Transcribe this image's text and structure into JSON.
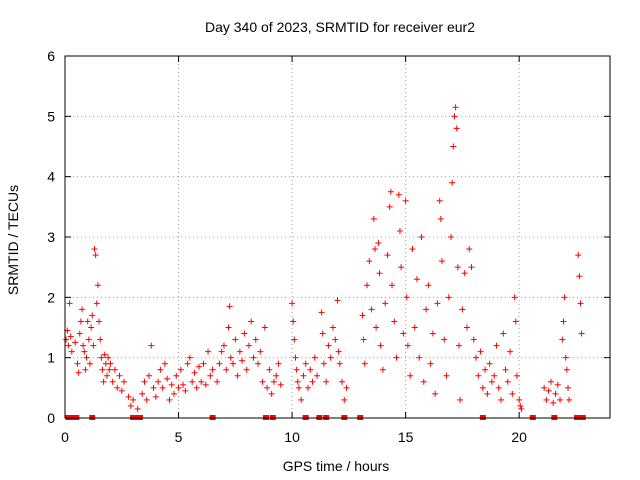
{
  "chart_data": {
    "type": "scatter",
    "title": "Day 340 of 2023, SRMTID for receiver eur2",
    "xlabel": "GPS time / hours",
    "ylabel": "SRMTID / TECUs",
    "xlim": [
      0,
      24
    ],
    "ylim": [
      0,
      6
    ],
    "xticks": [
      0,
      5,
      10,
      15,
      20
    ],
    "yticks": [
      0,
      1,
      2,
      3,
      4,
      5,
      6
    ],
    "grid": true,
    "marker": "plus",
    "color": "#ff0000",
    "legend": "none",
    "series": [
      {
        "name": "SRMTID",
        "points": [
          [
            0.05,
            1.3
          ],
          [
            0.1,
            1.45
          ],
          [
            0.15,
            1.2
          ],
          [
            0.2,
            1.9
          ],
          [
            0.25,
            1.35
          ],
          [
            0.3,
            1.1
          ],
          [
            0.45,
            1.25
          ],
          [
            0.55,
            0.9
          ],
          [
            0.6,
            0.75
          ],
          [
            0.65,
            1.4
          ],
          [
            0.7,
            1.6
          ],
          [
            0.75,
            1.8
          ],
          [
            0.8,
            1.2
          ],
          [
            0.85,
            1.1
          ],
          [
            0.9,
            0.8
          ],
          [
            0.95,
            1.0
          ],
          [
            1.0,
            1.6
          ],
          [
            1.05,
            1.3
          ],
          [
            1.1,
            0.9
          ],
          [
            1.15,
            1.5
          ],
          [
            1.2,
            1.7
          ],
          [
            1.25,
            1.2
          ],
          [
            1.3,
            2.8
          ],
          [
            1.35,
            2.7
          ],
          [
            1.4,
            1.9
          ],
          [
            1.45,
            2.2
          ],
          [
            1.5,
            1.6
          ],
          [
            1.55,
            1.3
          ],
          [
            1.6,
            1.0
          ],
          [
            1.65,
            0.8
          ],
          [
            1.7,
            0.6
          ],
          [
            1.75,
            1.05
          ],
          [
            1.8,
            0.9
          ],
          [
            1.85,
            0.7
          ],
          [
            1.9,
            1.0
          ],
          [
            1.95,
            0.8
          ],
          [
            2.0,
            0.9
          ],
          [
            2.1,
            0.6
          ],
          [
            2.2,
            0.8
          ],
          [
            2.3,
            0.5
          ],
          [
            2.4,
            0.7
          ],
          [
            2.5,
            0.45
          ],
          [
            2.6,
            0.6
          ],
          [
            2.8,
            0.35
          ],
          [
            2.9,
            0.2
          ],
          [
            3.0,
            0.3
          ],
          [
            3.2,
            0.15
          ],
          [
            3.4,
            0.4
          ],
          [
            3.5,
            0.6
          ],
          [
            3.6,
            0.3
          ],
          [
            3.7,
            0.7
          ],
          [
            3.8,
            1.2
          ],
          [
            3.9,
            0.5
          ],
          [
            4.0,
            0.35
          ],
          [
            4.1,
            0.6
          ],
          [
            4.2,
            0.8
          ],
          [
            4.3,
            0.5
          ],
          [
            4.4,
            0.9
          ],
          [
            4.5,
            0.65
          ],
          [
            4.6,
            0.3
          ],
          [
            4.7,
            0.55
          ],
          [
            4.8,
            0.4
          ],
          [
            4.9,
            0.7
          ],
          [
            5.0,
            0.5
          ],
          [
            5.1,
            0.8
          ],
          [
            5.2,
            0.55
          ],
          [
            5.3,
            0.45
          ],
          [
            5.4,
            0.9
          ],
          [
            5.5,
            1.0
          ],
          [
            5.6,
            0.6
          ],
          [
            5.7,
            0.75
          ],
          [
            5.8,
            0.5
          ],
          [
            5.9,
            0.85
          ],
          [
            6.0,
            0.6
          ],
          [
            6.1,
            0.9
          ],
          [
            6.2,
            0.55
          ],
          [
            6.3,
            1.1
          ],
          [
            6.4,
            0.7
          ],
          [
            6.5,
            0.8
          ],
          [
            6.7,
            0.6
          ],
          [
            6.8,
            0.9
          ],
          [
            6.9,
            1.1
          ],
          [
            7.0,
            1.2
          ],
          [
            7.1,
            0.8
          ],
          [
            7.2,
            1.5
          ],
          [
            7.25,
            1.85
          ],
          [
            7.3,
            1.0
          ],
          [
            7.4,
            0.9
          ],
          [
            7.5,
            1.3
          ],
          [
            7.6,
            0.7
          ],
          [
            7.7,
            1.1
          ],
          [
            7.8,
            0.95
          ],
          [
            7.9,
            1.4
          ],
          [
            8.0,
            0.8
          ],
          [
            8.1,
            1.2
          ],
          [
            8.2,
            1.6
          ],
          [
            8.3,
            1.0
          ],
          [
            8.4,
            1.3
          ],
          [
            8.5,
            0.9
          ],
          [
            8.6,
            1.1
          ],
          [
            8.7,
            0.6
          ],
          [
            8.8,
            1.5
          ],
          [
            8.9,
            0.5
          ],
          [
            9.0,
            0.8
          ],
          [
            9.1,
            0.4
          ],
          [
            9.2,
            0.6
          ],
          [
            9.3,
            0.7
          ],
          [
            9.4,
            0.9
          ],
          [
            9.5,
            0.55
          ],
          [
            10.0,
            1.9
          ],
          [
            10.05,
            1.6
          ],
          [
            10.1,
            1.3
          ],
          [
            10.15,
            1.0
          ],
          [
            10.2,
            0.8
          ],
          [
            10.25,
            0.6
          ],
          [
            10.3,
            0.5
          ],
          [
            10.4,
            0.3
          ],
          [
            10.5,
            0.7
          ],
          [
            10.6,
            0.9
          ],
          [
            10.7,
            0.5
          ],
          [
            10.8,
            0.8
          ],
          [
            10.9,
            0.6
          ],
          [
            11.0,
            1.0
          ],
          [
            11.1,
            0.7
          ],
          [
            11.3,
            1.75
          ],
          [
            11.35,
            1.4
          ],
          [
            11.4,
            0.9
          ],
          [
            11.5,
            0.6
          ],
          [
            11.6,
            1.2
          ],
          [
            11.7,
            1.0
          ],
          [
            11.8,
            1.5
          ],
          [
            11.9,
            1.3
          ],
          [
            12.0,
            1.95
          ],
          [
            12.05,
            1.1
          ],
          [
            12.1,
            0.9
          ],
          [
            12.2,
            0.6
          ],
          [
            12.3,
            0.3
          ],
          [
            12.4,
            0.5
          ],
          [
            13.1,
            1.7
          ],
          [
            13.15,
            1.3
          ],
          [
            13.2,
            0.9
          ],
          [
            13.3,
            2.2
          ],
          [
            13.4,
            2.6
          ],
          [
            13.5,
            1.8
          ],
          [
            13.6,
            3.3
          ],
          [
            13.65,
            2.8
          ],
          [
            13.7,
            1.5
          ],
          [
            13.8,
            2.9
          ],
          [
            13.85,
            2.4
          ],
          [
            13.9,
            1.2
          ],
          [
            14.0,
            0.8
          ],
          [
            14.1,
            1.9
          ],
          [
            14.2,
            2.7
          ],
          [
            14.3,
            3.5
          ],
          [
            14.35,
            3.75
          ],
          [
            14.4,
            2.2
          ],
          [
            14.5,
            1.6
          ],
          [
            14.6,
            1.0
          ],
          [
            14.7,
            3.7
          ],
          [
            14.75,
            3.1
          ],
          [
            14.8,
            2.5
          ],
          [
            14.9,
            1.4
          ],
          [
            15.0,
            3.6
          ],
          [
            15.05,
            2.0
          ],
          [
            15.1,
            1.2
          ],
          [
            15.2,
            0.7
          ],
          [
            15.3,
            2.8
          ],
          [
            15.4,
            1.5
          ],
          [
            15.5,
            2.3
          ],
          [
            15.6,
            1.0
          ],
          [
            15.7,
            3.0
          ],
          [
            15.8,
            0.6
          ],
          [
            15.9,
            1.8
          ],
          [
            16.0,
            2.2
          ],
          [
            16.1,
            0.9
          ],
          [
            16.2,
            1.4
          ],
          [
            16.3,
            0.4
          ],
          [
            16.4,
            1.9
          ],
          [
            16.5,
            3.6
          ],
          [
            16.55,
            3.3
          ],
          [
            16.6,
            2.6
          ],
          [
            16.7,
            1.3
          ],
          [
            16.8,
            0.7
          ],
          [
            16.9,
            2.0
          ],
          [
            17.0,
            3.0
          ],
          [
            17.05,
            3.9
          ],
          [
            17.1,
            4.5
          ],
          [
            17.15,
            5.0
          ],
          [
            17.2,
            5.15
          ],
          [
            17.25,
            4.8
          ],
          [
            17.3,
            2.5
          ],
          [
            17.35,
            1.2
          ],
          [
            17.4,
            0.3
          ],
          [
            17.5,
            1.8
          ],
          [
            17.6,
            2.4
          ],
          [
            17.7,
            1.5
          ],
          [
            17.8,
            2.8
          ],
          [
            17.9,
            2.5
          ],
          [
            18.0,
            1.3
          ],
          [
            18.1,
            1.0
          ],
          [
            18.2,
            0.7
          ],
          [
            18.3,
            1.1
          ],
          [
            18.4,
            0.5
          ],
          [
            18.5,
            0.8
          ],
          [
            18.6,
            0.4
          ],
          [
            18.7,
            0.9
          ],
          [
            18.8,
            0.6
          ],
          [
            18.9,
            0.7
          ],
          [
            19.0,
            1.2
          ],
          [
            19.1,
            0.5
          ],
          [
            19.2,
            0.3
          ],
          [
            19.3,
            1.4
          ],
          [
            19.4,
            0.8
          ],
          [
            19.5,
            0.6
          ],
          [
            19.6,
            1.1
          ],
          [
            19.7,
            0.4
          ],
          [
            19.8,
            2.0
          ],
          [
            19.85,
            1.6
          ],
          [
            19.9,
            0.7
          ],
          [
            20.0,
            0.3
          ],
          [
            20.05,
            0.2
          ],
          [
            20.1,
            0.15
          ],
          [
            21.1,
            0.5
          ],
          [
            21.2,
            0.3
          ],
          [
            21.3,
            0.45
          ],
          [
            21.4,
            0.6
          ],
          [
            21.5,
            0.25
          ],
          [
            21.6,
            0.4
          ],
          [
            21.7,
            0.55
          ],
          [
            21.8,
            0.3
          ],
          [
            21.9,
            1.3
          ],
          [
            21.95,
            1.6
          ],
          [
            22.0,
            2.0
          ],
          [
            22.05,
            1.0
          ],
          [
            22.1,
            0.8
          ],
          [
            22.15,
            0.5
          ],
          [
            22.2,
            0.3
          ],
          [
            22.6,
            2.7
          ],
          [
            22.65,
            2.35
          ],
          [
            22.7,
            1.9
          ],
          [
            22.75,
            1.4
          ]
        ]
      }
    ],
    "gap_markers_x": [
      0.15,
      0.35,
      0.5,
      1.2,
      3.0,
      3.15,
      3.3,
      6.5,
      8.85,
      9.15,
      10.6,
      11.2,
      11.5,
      12.3,
      13.0,
      18.4,
      20.6,
      21.55,
      22.55,
      22.7,
      22.8
    ]
  }
}
